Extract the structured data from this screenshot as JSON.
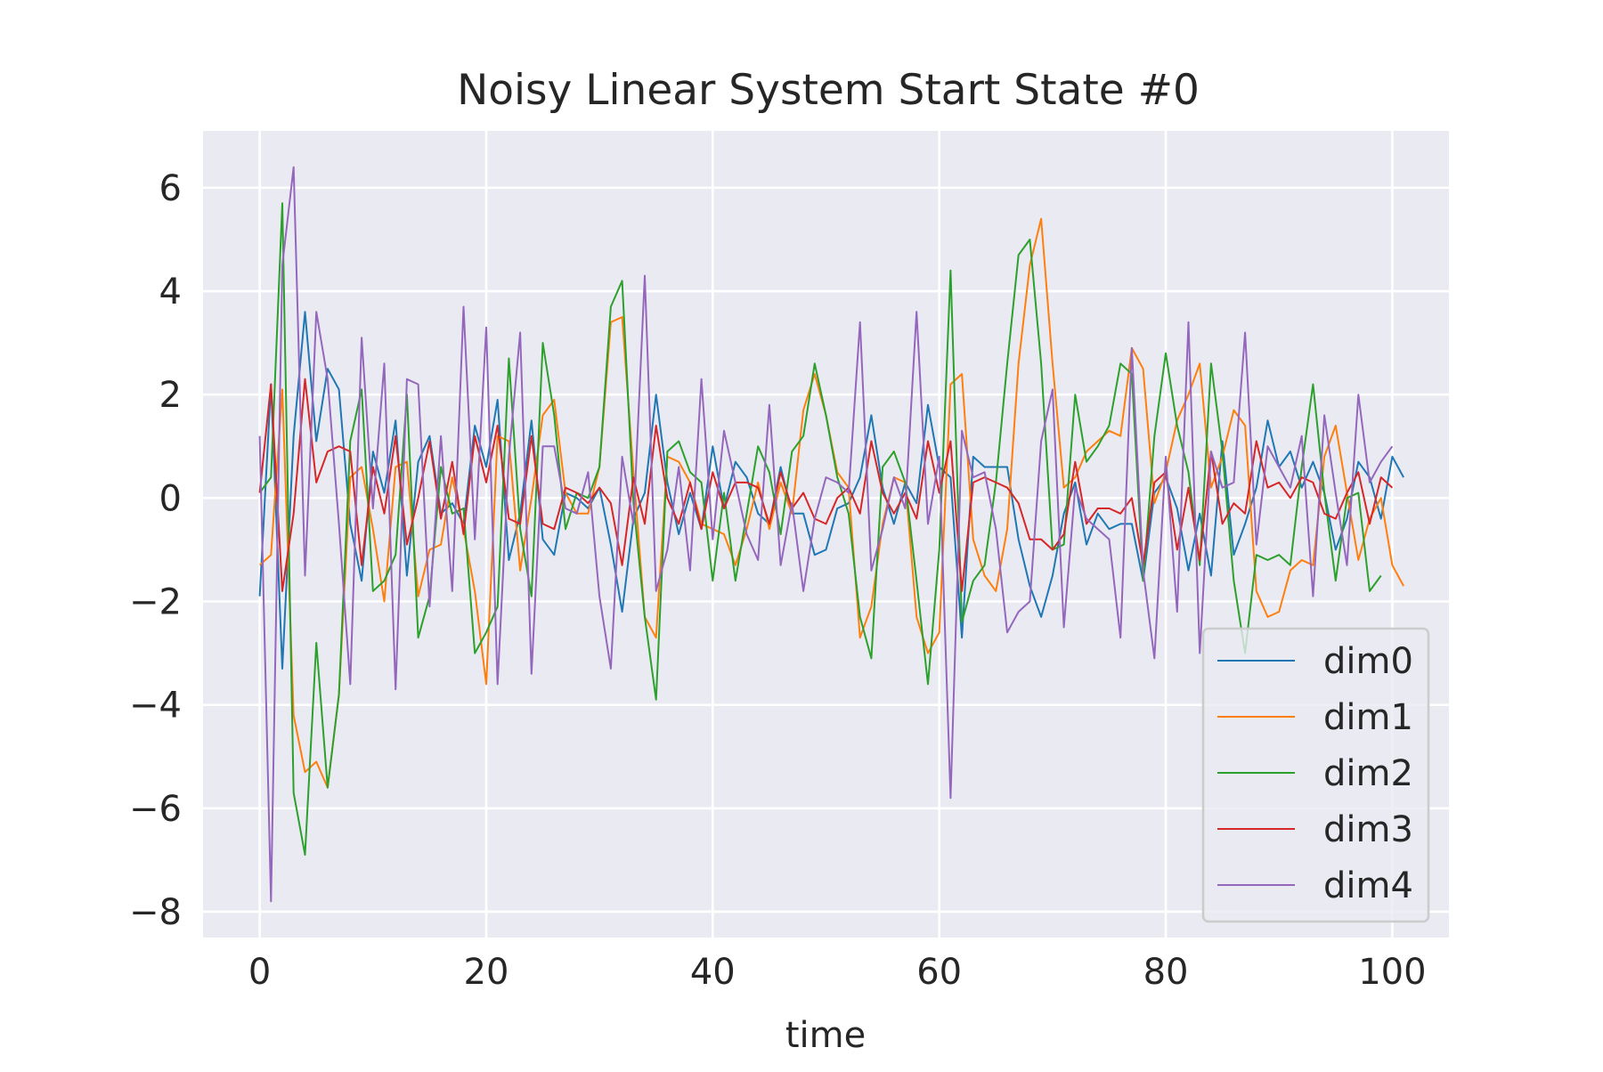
{
  "chart_data": {
    "type": "line",
    "title": "Noisy Linear System Start State #0",
    "xlabel": "time",
    "ylabel": "",
    "xlim": [
      -5,
      105
    ],
    "ylim": [
      -8.5,
      7.1
    ],
    "xticks": [
      0,
      20,
      40,
      60,
      80,
      100
    ],
    "yticks": [
      -8,
      -6,
      -4,
      -2,
      0,
      2,
      4,
      6
    ],
    "xtick_labels": [
      "0",
      "20",
      "40",
      "60",
      "80",
      "100"
    ],
    "ytick_labels": [
      "−8",
      "−6",
      "−4",
      "−2",
      "0",
      "2",
      "4",
      "6"
    ],
    "grid": true,
    "background": "#eaeaf2",
    "legend_position": "lower-right",
    "x_start": 0,
    "x_step": 1,
    "series": [
      {
        "name": "dim0",
        "color": "#1f77b4",
        "values": [
          -1.9,
          2.2,
          -3.3,
          1.2,
          3.6,
          1.1,
          2.5,
          2.1,
          -0.5,
          -1.6,
          0.9,
          0.1,
          1.5,
          -1.5,
          0.7,
          1.2,
          -0.3,
          -0.1,
          -0.5,
          1.4,
          0.6,
          1.9,
          -1.2,
          -0.3,
          1.5,
          -0.8,
          -1.1,
          0.1,
          0.0,
          -0.2,
          0.2,
          -0.9,
          -2.2,
          -0.4,
          0.1,
          2.0,
          0.3,
          -0.7,
          0.1,
          -0.6,
          1.0,
          -0.2,
          0.7,
          0.4,
          -0.3,
          -0.5,
          0.6,
          -0.3,
          -0.3,
          -1.1,
          -1.0,
          -0.2,
          -0.1,
          0.4,
          1.6,
          0.2,
          -0.5,
          0.3,
          -0.1,
          1.8,
          0.6,
          0.4,
          -2.7,
          0.8,
          0.6,
          0.6,
          0.6,
          -0.8,
          -1.7,
          -2.3,
          -1.5,
          -0.3,
          0.3,
          -0.9,
          -0.3,
          -0.6,
          -0.5,
          -0.5,
          -1.6,
          0.1,
          0.4,
          -0.2,
          -1.4,
          -0.3,
          -1.5,
          1.1,
          -1.1,
          -0.5,
          0.2,
          1.5,
          0.6,
          0.9,
          0.2,
          0.7,
          0.1,
          -1.0,
          -0.4,
          0.7,
          0.4,
          -0.4,
          0.8,
          0.4
        ]
      },
      {
        "name": "dim1",
        "color": "#ff7f0e",
        "values": [
          -1.3,
          -1.1,
          2.1,
          -4.2,
          -5.3,
          -5.1,
          -5.6,
          -3.8,
          0.4,
          0.6,
          -0.6,
          -2.0,
          0.6,
          0.7,
          -1.9,
          -1.0,
          -0.9,
          0.4,
          -0.6,
          -1.8,
          -3.6,
          1.2,
          1.1,
          -1.4,
          0.0,
          1.6,
          1.9,
          0.1,
          -0.3,
          -0.3,
          0.6,
          3.4,
          3.5,
          0.5,
          -2.3,
          -2.7,
          0.8,
          0.7,
          0.3,
          -0.5,
          -0.6,
          -0.7,
          -1.3,
          -0.6,
          0.3,
          -0.6,
          0.3,
          -0.3,
          1.7,
          2.4,
          1.6,
          0.5,
          0.2,
          -2.7,
          -2.1,
          -0.5,
          0.4,
          0.3,
          -2.3,
          -3.0,
          -2.6,
          2.2,
          2.4,
          -0.8,
          -1.5,
          -1.8,
          -0.6,
          2.6,
          4.5,
          5.4,
          2.6,
          0.2,
          0.4,
          0.9,
          1.1,
          1.3,
          1.2,
          2.9,
          2.5,
          -0.1,
          0.5,
          1.5,
          2.0,
          2.6,
          0.2,
          0.8,
          1.7,
          1.4,
          -1.8,
          -2.3,
          -2.2,
          -1.4,
          -1.2,
          -1.3,
          0.8,
          1.4,
          0.1,
          -1.2,
          -0.4,
          0.0,
          -1.3,
          -1.7
        ]
      },
      {
        "name": "dim2",
        "color": "#2ca02c",
        "values": [
          0.1,
          0.4,
          5.7,
          -5.7,
          -6.9,
          -2.8,
          -5.6,
          -3.8,
          1.1,
          2.1,
          -1.8,
          -1.6,
          -1.1,
          2.0,
          -2.7,
          -1.9,
          0.6,
          -0.3,
          -0.2,
          -3.0,
          -2.6,
          -2.1,
          2.7,
          -0.6,
          -1.9,
          3.0,
          1.6,
          -0.6,
          0.1,
          0.0,
          0.6,
          3.7,
          4.2,
          -0.1,
          -2.3,
          -3.9,
          0.9,
          1.1,
          0.5,
          0.3,
          -1.6,
          0.1,
          -1.6,
          -0.3,
          1.0,
          0.5,
          -0.7,
          0.9,
          1.2,
          2.6,
          1.6,
          0.4,
          -0.3,
          -2.3,
          -3.1,
          0.6,
          0.9,
          0.3,
          -1.6,
          -3.6,
          -1.0,
          4.4,
          -2.4,
          -1.6,
          -1.3,
          0.3,
          2.6,
          4.7,
          5.0,
          2.6,
          -1.0,
          -0.9,
          2.0,
          0.7,
          1.0,
          1.4,
          2.6,
          2.4,
          -1.6,
          1.2,
          2.8,
          1.4,
          0.5,
          -1.3,
          2.6,
          0.9,
          -1.6,
          -3.0,
          -1.1,
          -1.2,
          -1.1,
          -1.3,
          0.6,
          2.2,
          0.1,
          -1.6,
          0.0,
          0.1,
          -1.8,
          -1.5
        ]
      },
      {
        "name": "dim3",
        "color": "#d62728",
        "values": [
          0.1,
          2.2,
          -1.8,
          -0.3,
          2.3,
          0.3,
          0.9,
          1.0,
          0.9,
          -1.3,
          0.6,
          -0.3,
          1.2,
          -0.9,
          0.0,
          1.1,
          -0.4,
          0.7,
          -0.7,
          1.2,
          0.3,
          1.4,
          -0.4,
          -0.5,
          1.2,
          -0.5,
          -0.6,
          0.2,
          0.1,
          -0.1,
          0.2,
          -0.1,
          -1.3,
          0.4,
          -0.5,
          1.4,
          0.0,
          -0.5,
          0.3,
          -0.6,
          0.5,
          -0.2,
          0.3,
          0.3,
          0.2,
          -0.5,
          0.5,
          -0.2,
          0.1,
          -0.4,
          -0.5,
          0.0,
          0.2,
          -0.3,
          1.1,
          0.1,
          -0.3,
          0.1,
          -0.4,
          1.1,
          0.1,
          1.1,
          -1.8,
          0.3,
          0.4,
          0.3,
          0.2,
          -0.1,
          -0.8,
          -0.8,
          -1.0,
          -0.7,
          0.7,
          -0.5,
          -0.2,
          -0.2,
          -0.3,
          0.0,
          -1.3,
          0.3,
          0.5,
          -1.0,
          0.2,
          -1.2,
          0.9,
          -0.5,
          -0.1,
          -0.3,
          1.1,
          0.2,
          0.3,
          0.0,
          0.4,
          0.3,
          -0.3,
          -0.4,
          0.1,
          0.5,
          -0.5,
          0.4,
          0.2
        ]
      },
      {
        "name": "dim4",
        "color": "#9467bd",
        "values": [
          1.2,
          -7.8,
          4.5,
          6.4,
          -1.5,
          3.6,
          2.3,
          -0.5,
          -3.6,
          3.1,
          -0.2,
          2.6,
          -3.7,
          2.3,
          2.2,
          -2.1,
          1.2,
          -1.8,
          3.7,
          -0.8,
          3.3,
          -3.6,
          0.8,
          3.2,
          -3.4,
          1.0,
          1.0,
          -0.2,
          -0.3,
          0.5,
          -1.9,
          -3.3,
          0.8,
          -0.5,
          4.3,
          -1.8,
          -1.0,
          0.6,
          -1.4,
          2.3,
          -0.8,
          1.3,
          0.3,
          -0.7,
          -1.2,
          1.8,
          -1.3,
          -0.1,
          -1.8,
          -0.4,
          0.4,
          0.3,
          0.1,
          3.4,
          -1.4,
          -0.6,
          0.4,
          -0.2,
          3.6,
          -0.5,
          0.8,
          -5.8,
          1.3,
          0.4,
          0.5,
          -0.6,
          -2.6,
          -2.2,
          -2.0,
          1.1,
          2.1,
          -2.5,
          0.2,
          -0.4,
          -0.6,
          -0.8,
          -2.7,
          2.9,
          -1.4,
          -3.1,
          0.8,
          -2.2,
          3.4,
          -3.0,
          0.9,
          0.2,
          0.3,
          3.2,
          -0.9,
          1.0,
          0.6,
          0.2,
          1.2,
          -1.9,
          1.6,
          0.1,
          -1.3,
          2.0,
          0.3,
          0.7,
          1.0
        ]
      }
    ]
  }
}
